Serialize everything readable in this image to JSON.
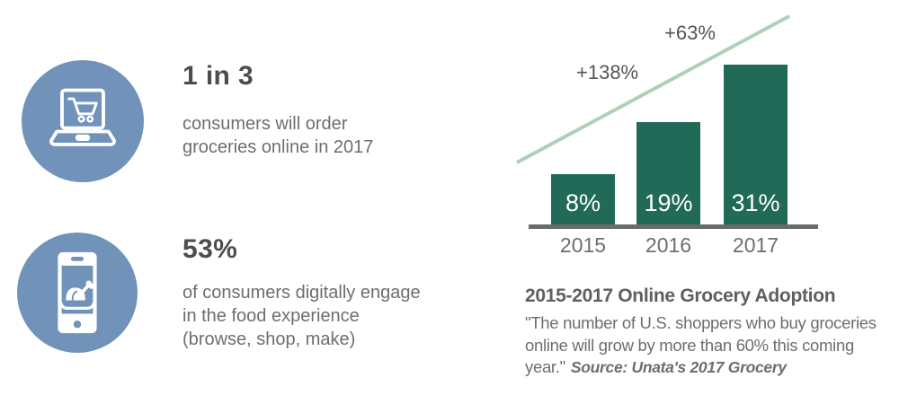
{
  "colors": {
    "icon_circle": "#7193BA",
    "bar": "#216A58",
    "trend_line": "#AFD0B6",
    "axis": "#6A6B6D",
    "headline_text": "#4D4D4F",
    "body_text": "#6D6E70"
  },
  "stats": [
    {
      "icon": "laptop-shopping-cart",
      "headline": "1 in 3",
      "description_lines": [
        "consumers will order",
        "groceries online in 2017"
      ]
    },
    {
      "icon": "smartphone-roast-turkey",
      "headline": "53%",
      "description_lines": [
        "of consumers digitally engage",
        "in the food experience",
        "(browse, shop, make)"
      ]
    }
  ],
  "chart_data": {
    "type": "bar",
    "title": "2015-2017 Online Grocery Adoption",
    "categories": [
      "2015",
      "2016",
      "2017"
    ],
    "values": [
      8,
      19,
      31
    ],
    "value_labels": [
      "8%",
      "19%",
      "31%"
    ],
    "unit": "%",
    "xlabel": "",
    "ylabel": "",
    "ylim": [
      0,
      35
    ],
    "grid": false,
    "legend": false,
    "trend_line": "rising light-green diagonal above bars",
    "annotations": [
      {
        "text": "+138%",
        "between": [
          "2015",
          "2016"
        ]
      },
      {
        "text": "+63%",
        "between": [
          "2016",
          "2017"
        ]
      }
    ]
  },
  "caption": {
    "title": "2015-2017 Online Grocery Adoption",
    "quote_lines": [
      "\"The number of U.S. shoppers who buy groceries",
      "online will grow by more than 60% this coming",
      "year.\""
    ],
    "source": "Source: Unata's 2017 Grocery"
  }
}
